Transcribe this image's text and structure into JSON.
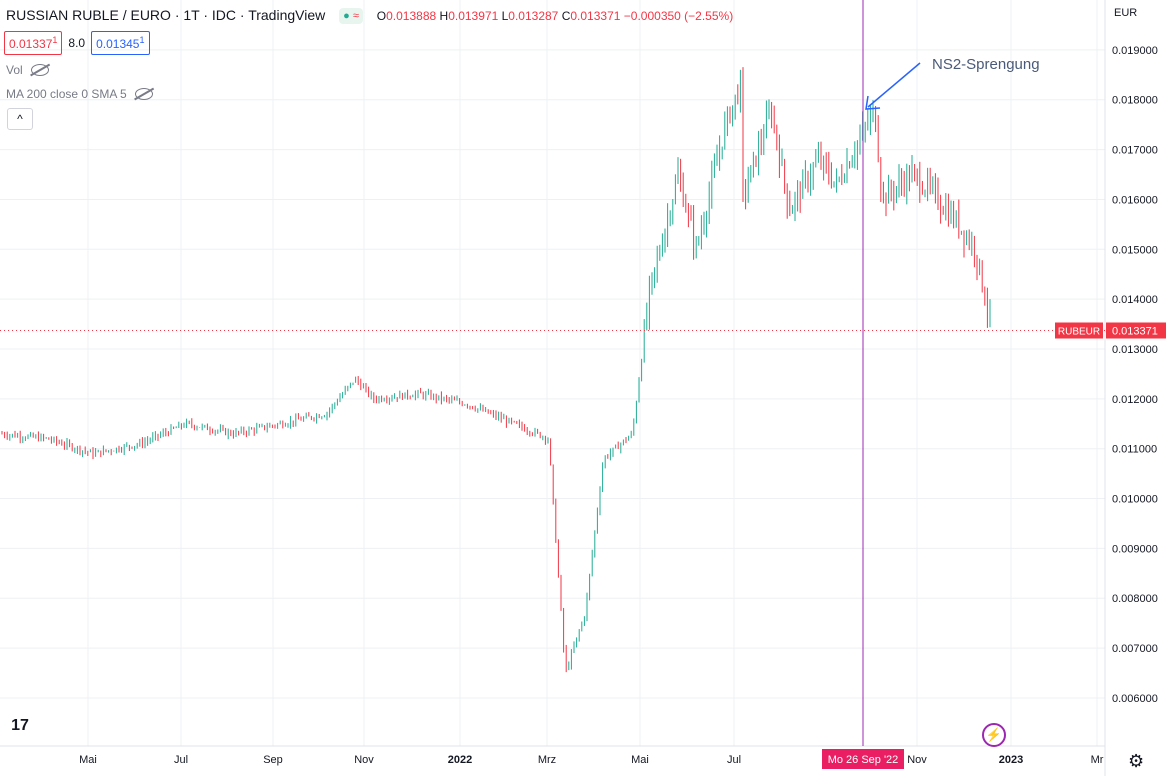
{
  "header": {
    "symbol": "RUSSIAN RUBLE / EURO · 1T · IDC · TradingView",
    "ohlc": {
      "o_label": "O",
      "o": "0.013888",
      "h_label": "H",
      "h": "0.013971",
      "l_label": "L",
      "l": "0.013287",
      "c_label": "C",
      "c": "0.013371",
      "chg": "−0.000350 (−2.55%)"
    },
    "sell_price": "0.01337",
    "sell_sup": "1",
    "spread": "8.0",
    "buy_price": "0.01345",
    "buy_sup": "1",
    "indicator_vol": "Vol",
    "indicator_ma": "MA 200 close 0 SMA 5",
    "collapse_glyph": "^",
    "toggle_glyph": "≈"
  },
  "axis": {
    "currency": "EUR",
    "ticks": [
      "0.019000",
      "0.018000",
      "0.017000",
      "0.016000",
      "0.015000",
      "0.014000",
      "0.013000",
      "0.012000",
      "0.011000",
      "0.010000",
      "0.009000",
      "0.008000",
      "0.007000",
      "0.006000"
    ],
    "months": [
      "Mai",
      "Jul",
      "Sep",
      "Nov",
      "2022",
      "Mrz",
      "Mai",
      "Jul",
      "Nov",
      "2023",
      "Mr"
    ],
    "crosshair_date": "Mo 26 Sep '22",
    "price_label_symbol": "RUBEUR",
    "price_label_value": "0.013371",
    "logo": "17",
    "flash_glyph": "⚡",
    "gear_glyph": "⚙"
  },
  "annotation": {
    "text": "NS2-Sprengung"
  },
  "colors": {
    "up": "#22ab94",
    "down": "#f23645",
    "crosshair": "#9c27b0",
    "arrow": "#2962ff",
    "grid": "#eef0f3"
  },
  "chart_data": {
    "type": "line",
    "x": [
      "2021-03",
      "2021-04",
      "2021-05",
      "2021-06",
      "2021-07",
      "2021-08",
      "2021-09",
      "2021-10",
      "2021-10-20",
      "2021-11",
      "2021-12",
      "2022-01",
      "2022-02",
      "2022-02-24",
      "2022-03-07",
      "2022-03-20",
      "2022-04",
      "2022-04-20",
      "2022-05",
      "2022-05-20",
      "2022-06",
      "2022-06-20",
      "2022-06-30",
      "2022-07",
      "2022-07-20",
      "2022-08",
      "2022-08-20",
      "2022-09",
      "2022-09-26",
      "2022-10",
      "2022-10-20",
      "2022-11",
      "2022-11-20",
      "2022-12",
      "2022-12-12"
    ],
    "values": [
      0.0113,
      0.0112,
      0.0109,
      0.0111,
      0.0115,
      0.0113,
      0.0115,
      0.0117,
      0.0124,
      0.012,
      0.0121,
      0.0119,
      0.0115,
      0.0112,
      0.0065,
      0.0077,
      0.0108,
      0.0113,
      0.0141,
      0.0165,
      0.015,
      0.0175,
      0.0183,
      0.016,
      0.0178,
      0.0158,
      0.0168,
      0.0163,
      0.0178,
      0.016,
      0.0165,
      0.0162,
      0.0155,
      0.015,
      0.013371
    ],
    "ylim": [
      0.0056,
      0.0197
    ]
  }
}
